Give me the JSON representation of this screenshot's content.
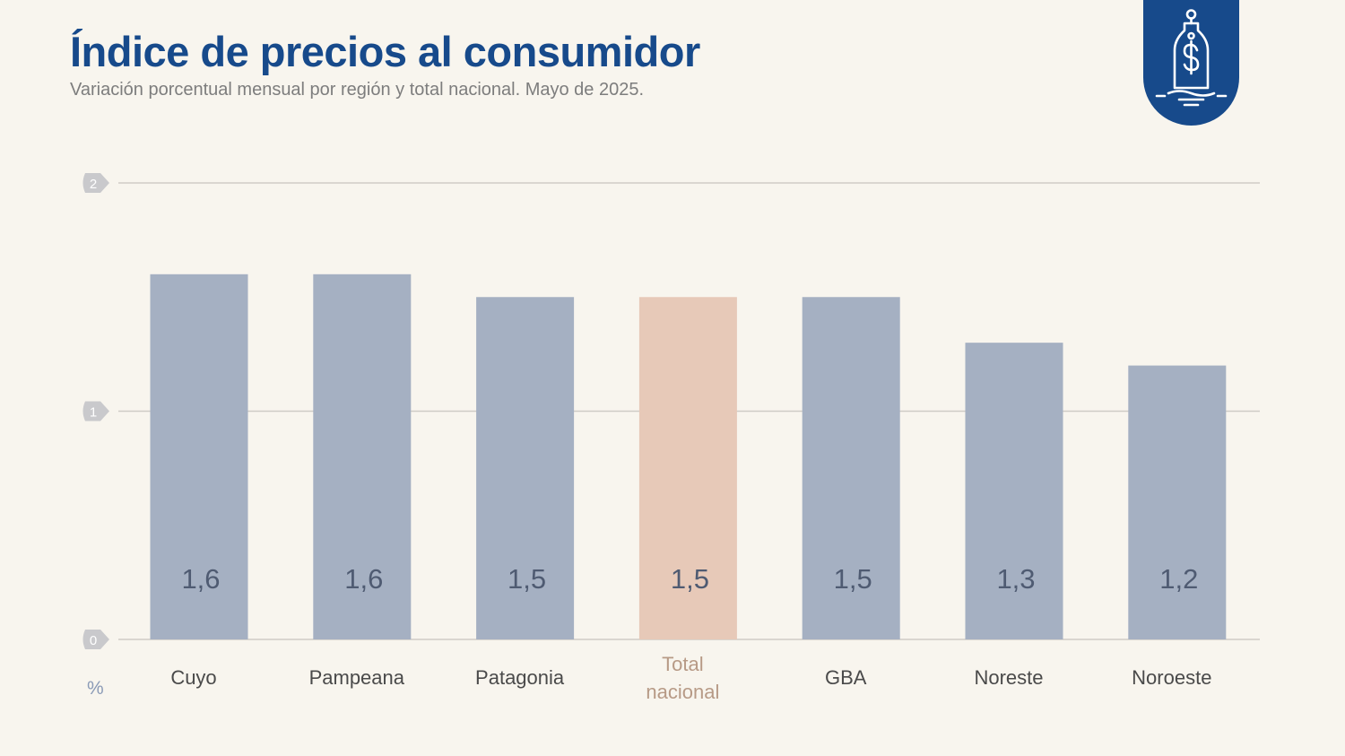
{
  "header": {
    "title": "Índice de precios al consumidor",
    "subtitle": "Variación porcentual mensual por región y total nacional. Mayo de 2025."
  },
  "icon": {
    "name": "price-tag-dollar-icon",
    "color": "#174a8b"
  },
  "colors": {
    "bar_default": "#a5b0c2",
    "bar_highlight": "#e7c9b8",
    "label_default": "#4f5b72",
    "label_highlight": "#b79a86",
    "grid": "#cfccc6",
    "tick_bg": "#c9c9cc"
  },
  "chart_data": {
    "type": "bar",
    "categories": [
      "Cuyo",
      "Pampeana",
      "Patagonia",
      "Total\nnacional",
      "GBA",
      "Noreste",
      "Noroeste"
    ],
    "values": [
      1.6,
      1.6,
      1.5,
      1.5,
      1.5,
      1.3,
      1.2
    ],
    "value_labels": [
      "1,6",
      "1,6",
      "1,5",
      "1,5",
      "1,5",
      "1,3",
      "1,2"
    ],
    "highlight_index": 3,
    "ylim": [
      0,
      2
    ],
    "yticks": [
      0,
      1,
      2
    ],
    "ylabel": "%",
    "grid": true
  }
}
